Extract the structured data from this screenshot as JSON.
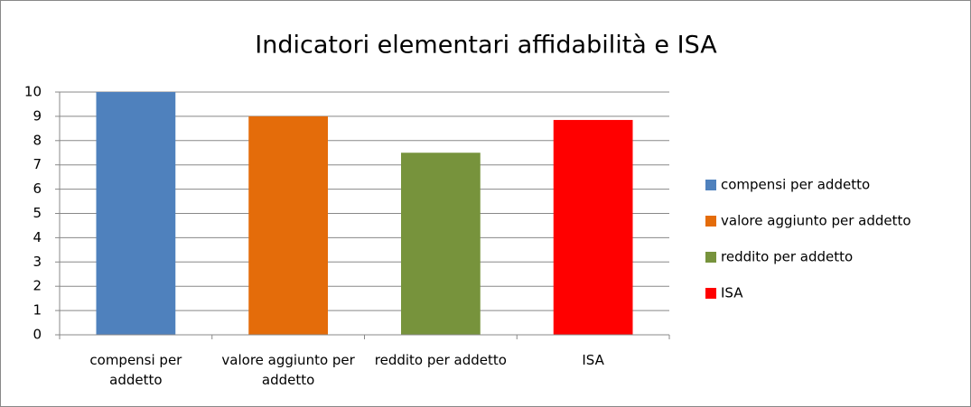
{
  "chart_data": {
    "type": "bar",
    "title": "Indicatori elementari affidabilità e ISA",
    "categories": [
      "compensi per addetto",
      "valore aggiunto per addetto",
      "reddito per addetto",
      "ISA"
    ],
    "values": [
      10,
      9,
      7.5,
      8.85
    ],
    "colors": [
      "#4f81bd",
      "#e46c0a",
      "#77933c",
      "#ff0000"
    ],
    "ylim": [
      0,
      10
    ],
    "yticks": [
      0,
      1,
      2,
      3,
      4,
      5,
      6,
      7,
      8,
      9,
      10
    ],
    "grid": true,
    "legend": "right"
  }
}
